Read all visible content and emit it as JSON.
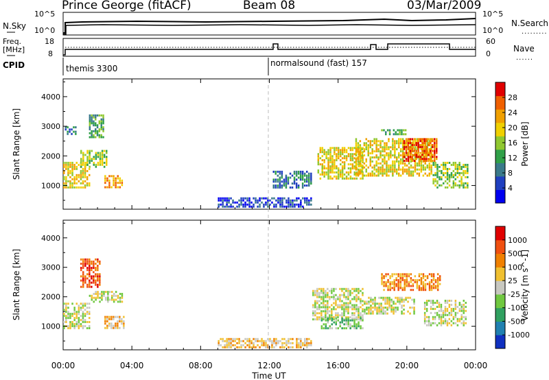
{
  "header": {
    "station": "Prince George (fitACF)",
    "beam": "Beam 08",
    "date": "03/Mar/2009"
  },
  "params": {
    "nsky_label": "N.Sky",
    "nsearch_label": "N.Search",
    "freq_label_1": "Freq.",
    "freq_label_2": "[MHz]",
    "nave_label": "Nave",
    "cpid_label": "CPID",
    "nsky_ticks": [
      "10^5",
      "10^0"
    ],
    "nsearch_ticks": [
      "10^5",
      "10^0"
    ],
    "freq_ticks": [
      "18",
      "8"
    ],
    "nave_ticks": [
      "60",
      "0"
    ],
    "cpid_segments": [
      {
        "start_hour": 0,
        "end_hour": 11.95,
        "label": "themis 3300"
      },
      {
        "start_hour": 11.95,
        "end_hour": 24,
        "label": "normalsound (fast) 157"
      }
    ]
  },
  "chart_data": [
    {
      "type": "heatmap",
      "panel": "power",
      "xlabel": "",
      "ylabel": "Slant Range [km]",
      "ylim": [
        200,
        4600
      ],
      "y_ticks": [
        "1000",
        "2000",
        "3000",
        "4000"
      ],
      "colorbar_label": "Power [dB]",
      "colorbar_ticks": [
        "28",
        "24",
        "20",
        "16",
        "12",
        "8",
        "4"
      ],
      "colors": [
        "#0000f0",
        "#2040c0",
        "#3a7a8a",
        "#30a048",
        "#90c830",
        "#f0d000",
        "#f0a000",
        "#f06000",
        "#e00000"
      ],
      "regions": [
        {
          "t0": 0.0,
          "t1": 1.6,
          "r0": 900,
          "r1": 1800,
          "level": 5
        },
        {
          "t0": 1.0,
          "t1": 2.6,
          "r0": 1600,
          "r1": 2200,
          "level": 4
        },
        {
          "t0": 1.5,
          "t1": 2.4,
          "r0": 2600,
          "r1": 3400,
          "level": 3
        },
        {
          "t0": 2.4,
          "t1": 3.5,
          "r0": 900,
          "r1": 1350,
          "level": 6
        },
        {
          "t0": 0.1,
          "t1": 0.8,
          "r0": 2700,
          "r1": 3000,
          "level": 2
        },
        {
          "t0": 14.8,
          "t1": 17.5,
          "r0": 1200,
          "r1": 2300,
          "level": 5
        },
        {
          "t0": 17.0,
          "t1": 21.5,
          "r0": 1300,
          "r1": 2600,
          "level": 5
        },
        {
          "t0": 19.8,
          "t1": 21.8,
          "r0": 1800,
          "r1": 2600,
          "level": 7
        },
        {
          "t0": 18.5,
          "t1": 20.0,
          "r0": 2700,
          "r1": 2900,
          "level": 3
        },
        {
          "t0": 21.5,
          "t1": 23.6,
          "r0": 900,
          "r1": 1800,
          "level": 4
        },
        {
          "t0": 9.0,
          "t1": 14.5,
          "r0": 250,
          "r1": 600,
          "level": 1
        },
        {
          "t0": 12.2,
          "t1": 14.5,
          "r0": 900,
          "r1": 1500,
          "level": 2
        }
      ]
    },
    {
      "type": "heatmap",
      "panel": "velocity",
      "xlabel": "Time UT",
      "ylabel": "Slant Range [km]",
      "ylim": [
        200,
        4600
      ],
      "y_ticks": [
        "1000",
        "2000",
        "3000",
        "4000"
      ],
      "x_ticks": [
        "00:00",
        "04:00",
        "08:00",
        "12:00",
        "16:00",
        "20:00",
        "00:00"
      ],
      "colorbar_label": "Velocity [m s^-1]",
      "colorbar_ticks": [
        "1000",
        "500",
        "100",
        "25",
        "-25",
        "-100",
        "-500",
        "-1000"
      ],
      "colors": [
        "#1030c0",
        "#2080b0",
        "#30a060",
        "#70c840",
        "#c8c8c0",
        "#f0c030",
        "#f08000",
        "#f05010",
        "#e00000"
      ],
      "regions": [
        {
          "t0": 0.0,
          "t1": 1.6,
          "r0": 900,
          "r1": 1800,
          "level": 4
        },
        {
          "t0": 1.5,
          "t1": 3.5,
          "r0": 1800,
          "r1": 2200,
          "level": 4
        },
        {
          "t0": 1.0,
          "t1": 2.2,
          "r0": 2300,
          "r1": 3300,
          "level": 7
        },
        {
          "t0": 2.4,
          "t1": 3.6,
          "r0": 900,
          "r1": 1350,
          "level": 5
        },
        {
          "t0": 14.5,
          "t1": 17.5,
          "r0": 1200,
          "r1": 2300,
          "level": 4
        },
        {
          "t0": 15.0,
          "t1": 17.5,
          "r0": 900,
          "r1": 1300,
          "level": 3
        },
        {
          "t0": 17.5,
          "t1": 20.5,
          "r0": 1400,
          "r1": 2000,
          "level": 4
        },
        {
          "t0": 18.5,
          "t1": 22.0,
          "r0": 2200,
          "r1": 2800,
          "level": 6
        },
        {
          "t0": 21.0,
          "t1": 23.5,
          "r0": 1000,
          "r1": 1900,
          "level": 4
        },
        {
          "t0": 9.0,
          "t1": 14.5,
          "r0": 250,
          "r1": 600,
          "level": 5
        }
      ]
    }
  ]
}
